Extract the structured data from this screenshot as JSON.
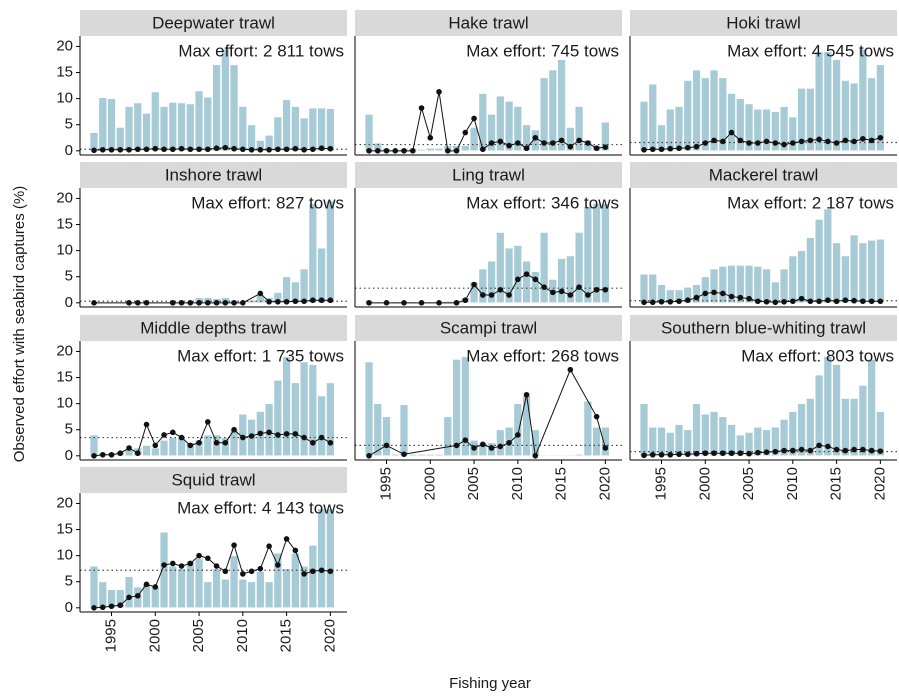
{
  "chart_data": [
    {
      "type": "bar",
      "title": "Deepwater trawl",
      "annotation": "Max effort: 2 811 tows",
      "x": [
        1993,
        1994,
        1995,
        1996,
        1997,
        1998,
        1999,
        2000,
        2001,
        2002,
        2003,
        2004,
        2005,
        2006,
        2007,
        2008,
        2009,
        2010,
        2011,
        2012,
        2013,
        2014,
        2015,
        2016,
        2017,
        2018,
        2019,
        2020
      ],
      "values": [
        3.5,
        10.2,
        10,
        4.5,
        8.5,
        9.2,
        7.2,
        11.3,
        8.5,
        9.3,
        9.2,
        9,
        11.5,
        10.3,
        16.5,
        19.5,
        16.5,
        8.5,
        5,
        2,
        3,
        6.5,
        9.8,
        8.5,
        6.3,
        8.2,
        8.2,
        8.1
      ],
      "line": {
        "values": [
          0.1,
          0.2,
          0.2,
          0.2,
          0.2,
          0.3,
          0.3,
          0.4,
          0.3,
          0.3,
          0.4,
          0.3,
          0.3,
          0.3,
          0.5,
          0.6,
          0.4,
          0.3,
          0.2,
          0.2,
          0.2,
          0.3,
          0.3,
          0.4,
          0.2,
          0.3,
          0.5,
          0.4
        ]
      },
      "mean": 0.3
    },
    {
      "type": "bar",
      "title": "Hake trawl",
      "annotation": "Max effort: 745 tows",
      "x": [
        1993,
        1994,
        1995,
        1996,
        1997,
        1998,
        1999,
        2000,
        2001,
        2002,
        2003,
        2004,
        2005,
        2006,
        2007,
        2008,
        2009,
        2010,
        2011,
        2012,
        2013,
        2014,
        2015,
        2016,
        2017,
        2018,
        2019,
        2020
      ],
      "values": [
        7,
        1.5,
        0.5,
        0.3,
        0.5,
        0.5,
        0.3,
        0.5,
        0.5,
        1,
        1,
        1,
        4.5,
        11,
        7,
        10.5,
        9.5,
        8.5,
        5,
        4,
        14,
        15.5,
        17.5,
        4.5,
        8.5,
        2,
        1,
        5.5
      ],
      "line": {
        "values": [
          0,
          0,
          0,
          0,
          0,
          0,
          8.2,
          2.5,
          11.3,
          0,
          0,
          3.5,
          6.2,
          0.3,
          1.5,
          1.8,
          1,
          1.5,
          0.5,
          2.5,
          1.5,
          1.5,
          2,
          0.8,
          2,
          1.5,
          0.5,
          0.7
        ]
      },
      "mean": 1.2
    },
    {
      "type": "bar",
      "title": "Hoki trawl",
      "annotation": "Max effort: 4 545 tows",
      "x": [
        1993,
        1994,
        1995,
        1996,
        1997,
        1998,
        1999,
        2000,
        2001,
        2002,
        2003,
        2004,
        2005,
        2006,
        2007,
        2008,
        2009,
        2010,
        2011,
        2012,
        2013,
        2014,
        2015,
        2016,
        2017,
        2018,
        2019,
        2020
      ],
      "values": [
        9.5,
        12.8,
        5,
        8,
        8.5,
        13.5,
        15.5,
        14,
        15.5,
        14,
        11,
        10,
        9,
        8,
        8,
        7.5,
        8.5,
        6.5,
        12,
        12,
        19,
        19,
        17.5,
        13.5,
        13,
        19.5,
        14,
        16.5
      ],
      "line": {
        "values": [
          0.2,
          0.3,
          0.3,
          0.4,
          0.5,
          0.6,
          0.8,
          1.5,
          2,
          1.8,
          3.5,
          2,
          1.5,
          1.5,
          1.8,
          1.5,
          1.2,
          1.5,
          1.8,
          2,
          2.2,
          1.8,
          1.5,
          2,
          1.8,
          2.3,
          2,
          2.5
        ]
      },
      "mean": 1.6
    },
    {
      "type": "bar",
      "title": "Inshore trawl",
      "annotation": "Max effort: 827 tows",
      "x": [
        1993,
        1994,
        1995,
        1996,
        1997,
        1998,
        1999,
        2000,
        2001,
        2002,
        2003,
        2004,
        2005,
        2006,
        2007,
        2008,
        2009,
        2010,
        2011,
        2012,
        2013,
        2014,
        2015,
        2016,
        2017,
        2018,
        2019,
        2020
      ],
      "values": [
        0.1,
        0.1,
        0.1,
        0.1,
        0.2,
        0.2,
        0.2,
        0.1,
        0.1,
        0.2,
        0.3,
        0.3,
        1,
        1,
        0.8,
        1,
        0.5,
        0.1,
        0.5,
        1.5,
        1,
        2,
        5,
        4,
        6.5,
        19,
        10.5,
        19.5
      ],
      "line": {
        "x": [
          1993,
          1997,
          1998,
          1999,
          2002,
          2003,
          2004,
          2005,
          2006,
          2007,
          2008,
          2009,
          2010,
          2012,
          2013,
          2014,
          2015,
          2016,
          2017,
          2018,
          2019,
          2020
        ],
        "values": [
          0,
          0,
          0,
          0,
          0,
          0,
          0,
          0,
          0,
          0,
          0,
          0,
          0,
          1.8,
          0.2,
          0.2,
          0.2,
          0.3,
          0.3,
          0.5,
          0.5,
          0.5
        ]
      },
      "mean": 0.3
    },
    {
      "type": "bar",
      "title": "Ling trawl",
      "annotation": "Max effort: 346 tows",
      "x": [
        1993,
        1994,
        1995,
        1996,
        1997,
        1998,
        1999,
        2000,
        2001,
        2002,
        2003,
        2004,
        2005,
        2006,
        2007,
        2008,
        2009,
        2010,
        2011,
        2012,
        2013,
        2014,
        2015,
        2016,
        2017,
        2018,
        2019,
        2020
      ],
      "values": [
        0.5,
        0.2,
        0.2,
        0.2,
        0.2,
        0.2,
        0.2,
        0.2,
        0.3,
        0.3,
        0.5,
        1,
        4,
        6.5,
        8,
        13.5,
        10.5,
        11,
        8,
        6,
        13.5,
        4.5,
        8.5,
        9,
        13.5,
        18.5,
        19,
        19
      ],
      "line": {
        "x": [
          1993,
          1995,
          1997,
          1999,
          2001,
          2003,
          2004,
          2005,
          2006,
          2007,
          2008,
          2009,
          2010,
          2011,
          2012,
          2013,
          2014,
          2015,
          2016,
          2017,
          2018,
          2019,
          2020
        ],
        "values": [
          0,
          0,
          0,
          0,
          0,
          0,
          0.5,
          3.5,
          1.5,
          1.5,
          2.5,
          1.5,
          4.5,
          5.5,
          4.5,
          3,
          2,
          2.2,
          1.5,
          3,
          1.5,
          2.5,
          2.5
        ]
      },
      "mean": 2.8
    },
    {
      "type": "bar",
      "title": "Mackerel trawl",
      "annotation": "Max effort: 2 187 tows",
      "x": [
        1993,
        1994,
        1995,
        1996,
        1997,
        1998,
        1999,
        2000,
        2001,
        2002,
        2003,
        2004,
        2005,
        2006,
        2007,
        2008,
        2009,
        2010,
        2011,
        2012,
        2013,
        2014,
        2015,
        2016,
        2017,
        2018,
        2019,
        2020
      ],
      "values": [
        5.5,
        5.5,
        3.5,
        2.5,
        2.5,
        3,
        3.5,
        5,
        6.5,
        7,
        7.2,
        7.2,
        7.2,
        7,
        6.5,
        4,
        6.5,
        9,
        10,
        12.5,
        16,
        18,
        11.5,
        9,
        13,
        11.5,
        12,
        12.2
      ],
      "line": {
        "values": [
          0.1,
          0.1,
          0.2,
          0.2,
          0.3,
          0.5,
          1,
          1.8,
          2,
          1.8,
          1.2,
          1,
          0.8,
          0.3,
          0.2,
          0.1,
          0.2,
          0.3,
          0.8,
          0.3,
          0.3,
          0.5,
          0.3,
          0.5,
          0.4,
          0.3,
          0.3,
          0.3
        ]
      },
      "mean": 0.4
    },
    {
      "type": "bar",
      "title": "Middle depths trawl",
      "annotation": "Max effort: 1 735 tows",
      "x": [
        1993,
        1994,
        1995,
        1996,
        1997,
        1998,
        1999,
        2000,
        2001,
        2002,
        2003,
        2004,
        2005,
        2006,
        2007,
        2008,
        2009,
        2010,
        2011,
        2012,
        2013,
        2014,
        2015,
        2016,
        2017,
        2018,
        2019,
        2020
      ],
      "values": [
        4,
        0.5,
        0.5,
        0.8,
        1.2,
        1.5,
        2,
        1.5,
        3,
        3.5,
        3.5,
        2.5,
        3,
        4,
        4,
        3.5,
        5,
        8,
        7,
        8.5,
        10,
        14.5,
        19,
        14,
        18,
        17.5,
        11.5,
        14
      ],
      "line": {
        "values": [
          0,
          0.2,
          0.2,
          0.5,
          1.5,
          0.5,
          6,
          2,
          4,
          4.5,
          3.5,
          2,
          2.5,
          6.5,
          2.5,
          2.5,
          5,
          3.5,
          3.8,
          4.3,
          4.5,
          4,
          4.2,
          4.2,
          3.5,
          2.5,
          3.5,
          2.5
        ]
      },
      "mean": 3.5
    },
    {
      "type": "bar",
      "title": "Scampi trawl",
      "annotation": "Max effort: 268 tows",
      "x": [
        1993,
        1994,
        1995,
        1996,
        1997,
        1998,
        1999,
        2000,
        2001,
        2002,
        2003,
        2004,
        2005,
        2006,
        2007,
        2008,
        2009,
        2010,
        2011,
        2012,
        2013,
        2014,
        2015,
        2016,
        2017,
        2018,
        2019,
        2020
      ],
      "values": [
        18,
        10,
        7.5,
        0.3,
        9.8,
        0.3,
        0.3,
        0.3,
        0.3,
        7.5,
        18.5,
        19,
        3,
        2.5,
        2.5,
        5,
        5.5,
        10,
        11.5,
        5,
        0.2,
        0.2,
        0.2,
        0.2,
        0.3,
        10.5,
        5.5,
        5.5
      ],
      "line": {
        "x": [
          1993,
          1995,
          1997,
          2003,
          2004,
          2005,
          2006,
          2007,
          2008,
          2009,
          2010,
          2011,
          2012,
          2016,
          2019,
          2020
        ],
        "values": [
          0,
          2,
          0.3,
          2,
          3,
          1.5,
          2.2,
          1.5,
          1.8,
          2.5,
          4,
          11.7,
          0,
          16.5,
          7.5,
          1.5
        ]
      },
      "mean": 2
    },
    {
      "type": "bar",
      "title": "Southern blue-whiting trawl",
      "annotation": "Max effort: 803 tows",
      "x": [
        1993,
        1994,
        1995,
        1996,
        1997,
        1998,
        1999,
        2000,
        2001,
        2002,
        2003,
        2004,
        2005,
        2006,
        2007,
        2008,
        2009,
        2010,
        2011,
        2012,
        2013,
        2014,
        2015,
        2016,
        2017,
        2018,
        2019,
        2020
      ],
      "values": [
        10,
        5.5,
        5.5,
        4.5,
        6,
        5,
        10,
        8,
        8.5,
        7.5,
        6,
        4,
        4.5,
        5.5,
        5,
        5.5,
        7,
        8.5,
        10,
        11,
        15.5,
        19,
        17.5,
        11,
        11,
        13.5,
        18.5,
        8.5
      ],
      "line": {
        "values": [
          0.1,
          0.2,
          0.2,
          0.2,
          0.3,
          0.3,
          0.4,
          0.5,
          0.5,
          0.5,
          0.5,
          0.5,
          0.4,
          0.6,
          0.7,
          0.8,
          1,
          1,
          1.2,
          1,
          2,
          1.8,
          1.2,
          1,
          1.2,
          1.2,
          1,
          0.9
        ]
      },
      "mean": 0.8
    },
    {
      "type": "bar",
      "title": "Squid trawl",
      "annotation": "Max effort: 4 143 tows",
      "x": [
        1993,
        1994,
        1995,
        1996,
        1997,
        1998,
        1999,
        2000,
        2001,
        2002,
        2003,
        2004,
        2005,
        2006,
        2007,
        2008,
        2009,
        2010,
        2011,
        2012,
        2013,
        2014,
        2015,
        2016,
        2017,
        2018,
        2019,
        2020
      ],
      "values": [
        8,
        5,
        3.5,
        3.5,
        6,
        4,
        4.5,
        4,
        14.5,
        8,
        7.5,
        9,
        9.5,
        5,
        7.5,
        5.5,
        10,
        5.5,
        5,
        7,
        5,
        10.5,
        7.5,
        10.5,
        8,
        12,
        19,
        19
      ],
      "line": {
        "values": [
          0,
          0.1,
          0.3,
          0.5,
          2,
          2.3,
          4.5,
          4,
          8.2,
          8.5,
          8,
          8.5,
          10,
          9.5,
          8,
          7,
          12,
          6.5,
          7,
          7.5,
          11.8,
          8.2,
          13.2,
          11,
          6.5,
          7,
          7.2,
          7
        ]
      },
      "mean": 7.2
    }
  ],
  "shared": {
    "xlim": [
      1991.4,
      2021.9
    ],
    "xticks": [
      1995,
      2000,
      2005,
      2010,
      2015,
      2020
    ],
    "ylim": [
      -0.8,
      22
    ],
    "yticks": [
      0,
      5,
      10,
      15,
      20
    ],
    "x_label": "Fishing year",
    "y_label": "Observed effort with seabird captures (%)",
    "bar_color": "#a7cbd6",
    "line_color": "#111111",
    "annotation_color": "#2f7191",
    "strip_color": "#d9d9d9"
  }
}
